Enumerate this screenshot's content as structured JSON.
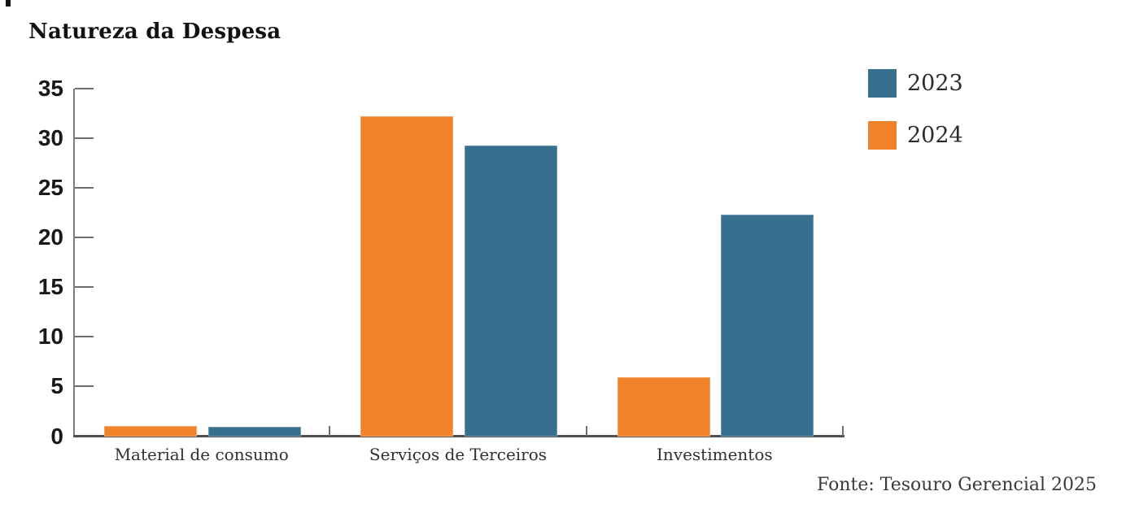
{
  "header": {
    "title": "Natureza da Despesa"
  },
  "chart_data": {
    "type": "bar",
    "title": "Natureza da Despesa",
    "categories": [
      "Material de consumo",
      "Serviços de Terceiros",
      "Investimentos"
    ],
    "series": [
      {
        "name": "2023",
        "color": "#36708E",
        "values": [
          1.0,
          29.3,
          22.4
        ]
      },
      {
        "name": "2024",
        "color": "#F0822A",
        "values": [
          1.1,
          32.3,
          6.0
        ]
      }
    ],
    "bar_display_order": [
      "2024",
      "2023"
    ],
    "ylim": [
      0,
      35
    ],
    "yticks": [
      0,
      5,
      10,
      15,
      20,
      25,
      30,
      35
    ],
    "xlabel": "",
    "ylabel": "",
    "grid": false,
    "legend_position": "top-right",
    "legend_entries": [
      "2023",
      "2024"
    ],
    "source": "Fonte: Tesouro Gerencial 2025"
  },
  "colors": {
    "series_2023": "#36708E",
    "series_2024": "#F0822A",
    "axis_bottom": "#4F4F4F",
    "axis_left": "#7D7D7D",
    "tick": "#6E6E6E",
    "tick_label": "#191919",
    "category_label": "#303030",
    "legend_label": "#2B2B2B",
    "source_text": "#3A3A3A",
    "title_text": "#111111",
    "background": "#FFFFFF"
  }
}
